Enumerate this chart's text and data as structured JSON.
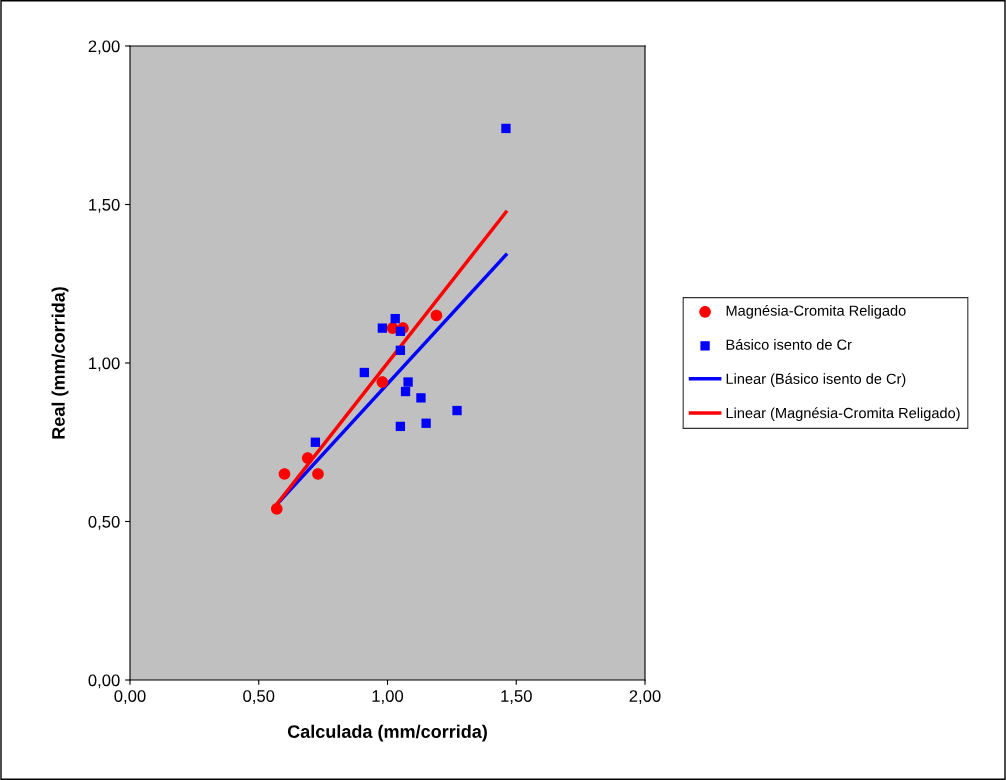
{
  "chart_data": {
    "type": "scatter",
    "xlabel": "Calculada (mm/corrida)",
    "ylabel": "Real (mm/corrida)",
    "xlim": [
      0,
      2
    ],
    "ylim": [
      0,
      2
    ],
    "xticks": [
      {
        "value": 0,
        "label": "0,00"
      },
      {
        "value": 0.5,
        "label": "0,50"
      },
      {
        "value": 1,
        "label": "1,00"
      },
      {
        "value": 1.5,
        "label": "1,50"
      },
      {
        "value": 2,
        "label": "2,00"
      }
    ],
    "yticks": [
      {
        "value": 0,
        "label": "0,00"
      },
      {
        "value": 0.5,
        "label": "0,50"
      },
      {
        "value": 1,
        "label": "1,00"
      },
      {
        "value": 1.5,
        "label": "1,50"
      },
      {
        "value": 2,
        "label": "2,00"
      }
    ],
    "grid": false,
    "legend": "right",
    "series": [
      {
        "name": "Magnésia-Cromita Religado",
        "color": "#ff0000",
        "marker": "circle",
        "x": [
          0.57,
          0.6,
          0.69,
          0.73,
          0.98,
          1.02,
          1.06,
          1.19
        ],
        "values": [
          0.54,
          0.65,
          0.7,
          0.65,
          0.94,
          1.11,
          1.11,
          1.15
        ]
      },
      {
        "name": "Básico isento de Cr",
        "color": "#0000ff",
        "marker": "square",
        "x": [
          0.72,
          0.91,
          0.98,
          1.03,
          1.05,
          1.05,
          1.08,
          1.07,
          1.13,
          1.05,
          1.15,
          1.27,
          1.46
        ],
        "values": [
          0.75,
          0.97,
          1.11,
          1.14,
          1.1,
          1.04,
          0.94,
          0.91,
          0.89,
          0.8,
          0.81,
          0.85,
          1.74
        ]
      },
      {
        "name": "Linear (Básico isento de Cr)",
        "type": "line",
        "color": "#0000ff",
        "marker": "none",
        "x": [
          0.575,
          1.46
        ],
        "values": [
          0.558,
          1.341
        ]
      },
      {
        "name": "Linear (Magnésia-Cromita Religado)",
        "type": "line",
        "color": "#ff0000",
        "marker": "none",
        "x": [
          0.575,
          1.46
        ],
        "values": [
          0.56,
          1.476
        ]
      }
    ]
  }
}
